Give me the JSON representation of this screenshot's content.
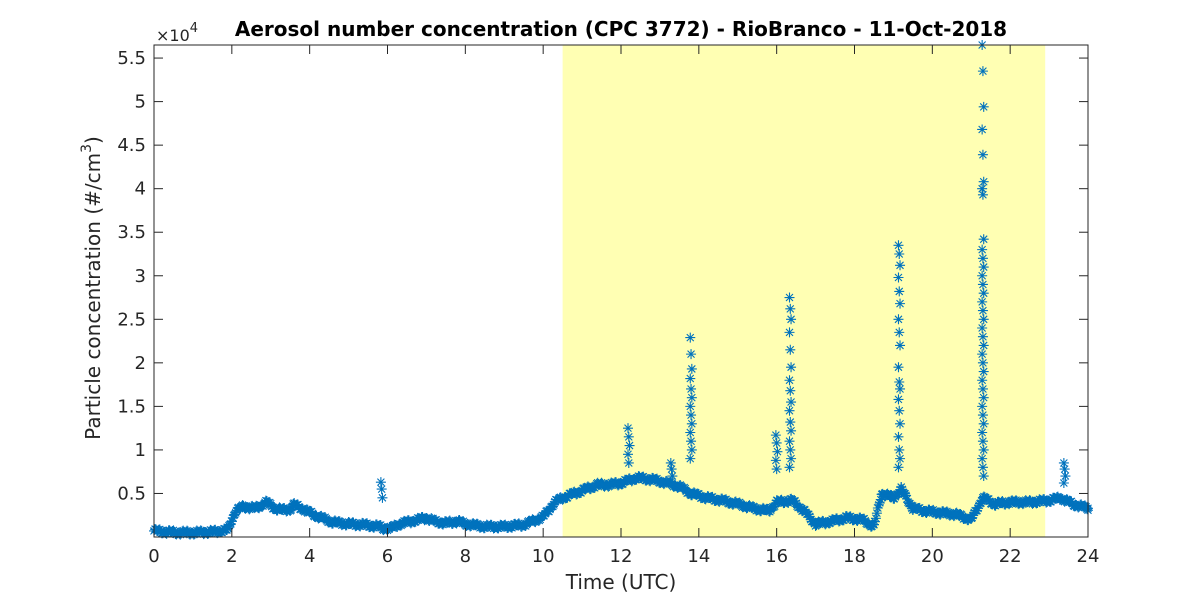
{
  "chart_data": {
    "type": "scatter",
    "title": "Aerosol number concentration (CPC 3772) - RioBranco - 11-Oct-2018",
    "xlabel": "Time (UTC)",
    "ylabel_main": "Particle concentration (#/cm",
    "ylabel_sup": "3",
    "ylabel_close": ")",
    "y_multiplier_base": "×10",
    "y_multiplier_exp": "4",
    "xlim": [
      0,
      24
    ],
    "ylim": [
      0,
      5.65
    ],
    "x_ticks": [
      0,
      2,
      4,
      6,
      8,
      10,
      12,
      14,
      16,
      18,
      20,
      22,
      24
    ],
    "x_tick_labels": [
      "0",
      "2",
      "4",
      "6",
      "8",
      "10",
      "12",
      "14",
      "16",
      "18",
      "20",
      "22",
      "24"
    ],
    "y_ticks": [
      0.5,
      1,
      1.5,
      2,
      2.5,
      3,
      3.5,
      4,
      4.5,
      5,
      5.5
    ],
    "y_tick_labels": [
      "0.5",
      "1",
      "1.5",
      "2",
      "2.5",
      "3",
      "3.5",
      "4",
      "4.5",
      "5",
      "5.5"
    ],
    "daylight_span": [
      10.5,
      22.9
    ],
    "colors": {
      "series": "#0072bd",
      "daylight": "#ffffb3",
      "axis": "#262626"
    },
    "marker": "asterisk",
    "baseline": [
      [
        0.0,
        0.07
      ],
      [
        0.3,
        0.06
      ],
      [
        0.6,
        0.05
      ],
      [
        1.0,
        0.05
      ],
      [
        1.5,
        0.06
      ],
      [
        1.9,
        0.08
      ],
      [
        2.0,
        0.2
      ],
      [
        2.1,
        0.3
      ],
      [
        2.3,
        0.35
      ],
      [
        2.6,
        0.33
      ],
      [
        2.9,
        0.4
      ],
      [
        3.1,
        0.33
      ],
      [
        3.3,
        0.31
      ],
      [
        3.5,
        0.32
      ],
      [
        3.6,
        0.37
      ],
      [
        3.8,
        0.33
      ],
      [
        4.0,
        0.28
      ],
      [
        4.3,
        0.22
      ],
      [
        4.6,
        0.17
      ],
      [
        5.0,
        0.15
      ],
      [
        5.4,
        0.14
      ],
      [
        5.8,
        0.12
      ],
      [
        5.9,
        0.1
      ],
      [
        6.1,
        0.1
      ],
      [
        6.3,
        0.15
      ],
      [
        6.6,
        0.18
      ],
      [
        7.0,
        0.22
      ],
      [
        7.2,
        0.18
      ],
      [
        7.5,
        0.16
      ],
      [
        7.8,
        0.18
      ],
      [
        8.0,
        0.15
      ],
      [
        8.5,
        0.12
      ],
      [
        9.0,
        0.12
      ],
      [
        9.5,
        0.14
      ],
      [
        10.0,
        0.23
      ],
      [
        10.3,
        0.4
      ],
      [
        10.5,
        0.45
      ],
      [
        10.8,
        0.5
      ],
      [
        11.1,
        0.55
      ],
      [
        11.4,
        0.6
      ],
      [
        11.7,
        0.6
      ],
      [
        12.0,
        0.62
      ],
      [
        12.4,
        0.68
      ],
      [
        12.8,
        0.66
      ],
      [
        13.2,
        0.62
      ],
      [
        13.5,
        0.58
      ],
      [
        13.8,
        0.5
      ],
      [
        14.2,
        0.45
      ],
      [
        14.6,
        0.42
      ],
      [
        15.0,
        0.38
      ],
      [
        15.4,
        0.33
      ],
      [
        15.8,
        0.3
      ],
      [
        16.0,
        0.4
      ],
      [
        16.4,
        0.42
      ],
      [
        16.7,
        0.3
      ],
      [
        17.0,
        0.15
      ],
      [
        17.4,
        0.18
      ],
      [
        17.8,
        0.22
      ],
      [
        18.2,
        0.2
      ],
      [
        18.5,
        0.12
      ],
      [
        18.7,
        0.5
      ],
      [
        19.0,
        0.45
      ],
      [
        19.2,
        0.55
      ],
      [
        19.5,
        0.33
      ],
      [
        19.8,
        0.3
      ],
      [
        20.2,
        0.28
      ],
      [
        20.6,
        0.26
      ],
      [
        21.0,
        0.2
      ],
      [
        21.3,
        0.45
      ],
      [
        21.6,
        0.38
      ],
      [
        22.0,
        0.4
      ],
      [
        22.5,
        0.4
      ],
      [
        23.0,
        0.42
      ],
      [
        23.3,
        0.45
      ],
      [
        23.6,
        0.38
      ],
      [
        24.0,
        0.33
      ]
    ],
    "peaks": [
      {
        "x": 5.85,
        "values": [
          0.63,
          0.55,
          0.45
        ]
      },
      {
        "x": 12.2,
        "values": [
          1.25,
          1.15,
          1.05,
          0.95,
          0.85
        ]
      },
      {
        "x": 13.3,
        "values": [
          0.85,
          0.78,
          0.7
        ]
      },
      {
        "x": 13.8,
        "values": [
          2.29,
          2.1,
          1.93,
          1.82,
          1.7,
          1.6,
          1.5,
          1.4,
          1.3,
          1.2,
          1.1,
          1.0,
          0.9
        ]
      },
      {
        "x": 16.0,
        "values": [
          1.17,
          1.08,
          0.98,
          0.88,
          0.78
        ]
      },
      {
        "x": 16.35,
        "values": [
          2.75,
          2.62,
          2.5,
          2.35,
          2.15,
          1.95,
          1.8,
          1.68,
          1.55,
          1.45,
          1.32,
          1.22,
          1.1,
          1.0,
          0.9,
          0.8
        ]
      },
      {
        "x": 19.15,
        "values": [
          3.35,
          3.25,
          3.12,
          2.98,
          2.82,
          2.68,
          2.5,
          2.35,
          2.2,
          1.95,
          1.78,
          1.7,
          1.58,
          1.45,
          1.3,
          1.15,
          1.0,
          0.9,
          0.8
        ]
      },
      {
        "x": 21.3,
        "values": [
          5.65,
          5.35,
          4.94,
          4.68,
          4.39,
          4.08,
          4.0,
          3.93,
          3.42,
          3.3,
          3.2,
          3.1,
          3.0,
          2.9,
          2.8,
          2.7,
          2.6,
          2.5,
          2.4,
          2.3,
          2.2,
          2.1,
          2.0,
          1.9,
          1.8,
          1.7,
          1.6,
          1.5,
          1.4,
          1.3,
          1.2,
          1.1,
          1.0,
          0.9,
          0.8,
          0.7
        ]
      },
      {
        "x": 23.4,
        "values": [
          0.85,
          0.78,
          0.7,
          0.62
        ]
      }
    ]
  }
}
